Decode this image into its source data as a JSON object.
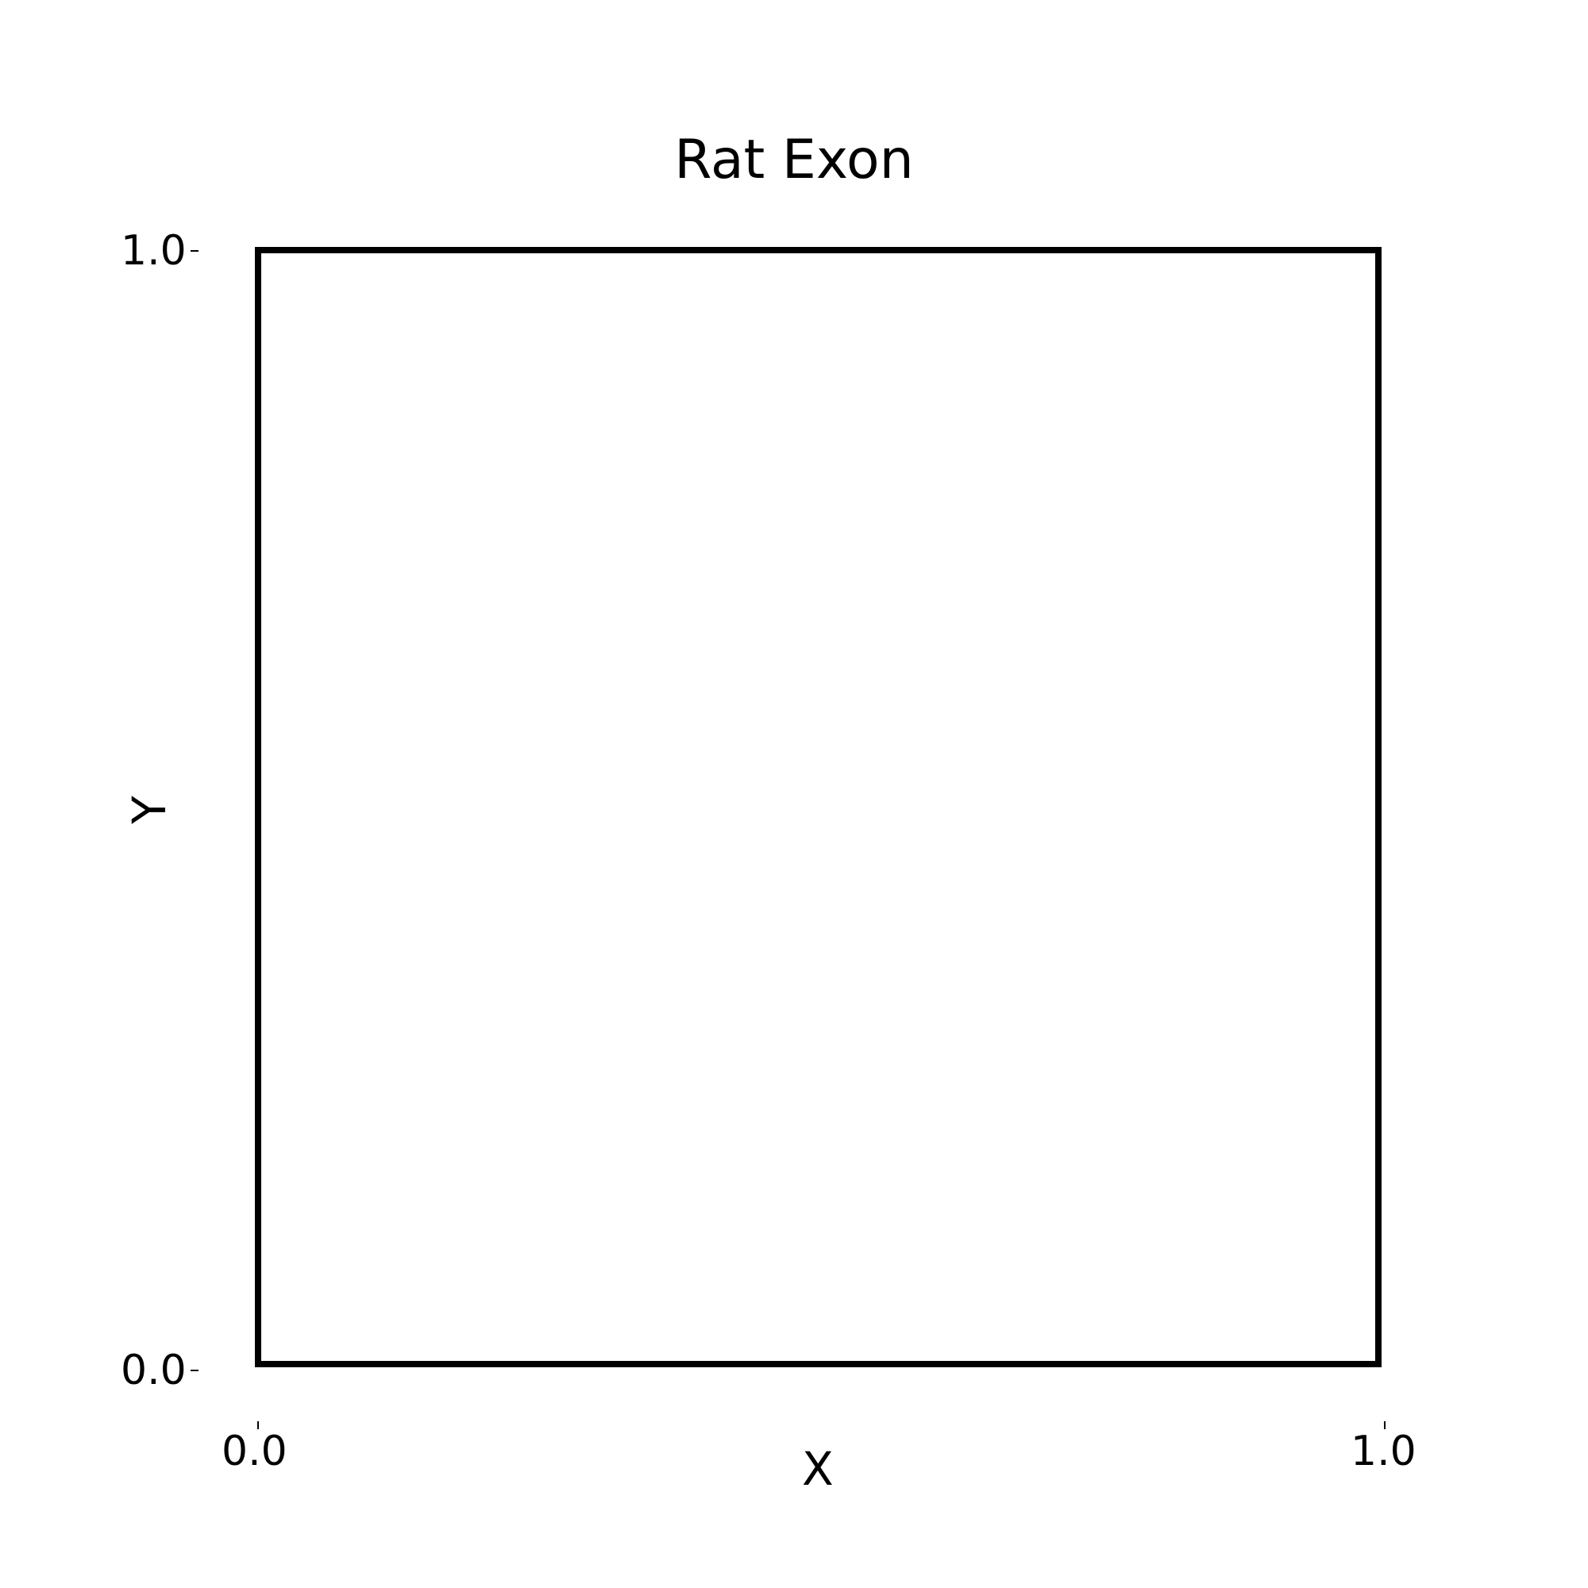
{
  "chart_data": {
    "type": "heatmap",
    "title": "Rat Exon",
    "xlabel": "X",
    "ylabel": "Y",
    "xlim": [
      0.0,
      1.0
    ],
    "ylim": [
      0.0,
      1.0
    ],
    "x_ticks": [
      "0.0",
      "1.0"
    ],
    "y_ticks": [
      "0.0",
      "1.0"
    ],
    "colormap": "grayscale (white low, black high)",
    "grid": false,
    "legend": "none"
  },
  "colors": {
    "background": "#ffffff",
    "frame": "#000000",
    "density_high": "#000000",
    "density_low": "#ffffff"
  }
}
